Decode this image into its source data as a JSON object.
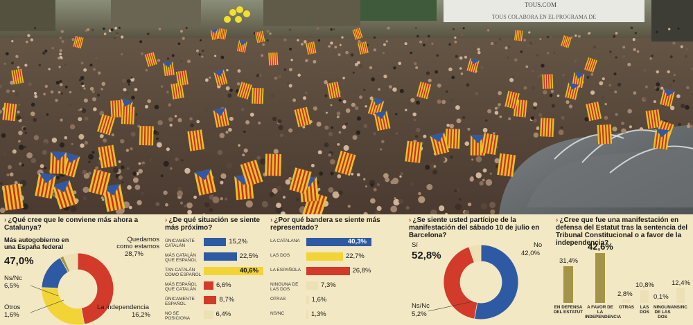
{
  "colors": {
    "red": "#d23b2a",
    "yellow": "#f2d437",
    "blue": "#2e5aa3",
    "olive": "#a39447",
    "olive_light": "#c8bb7b",
    "pale": "#ece0b4",
    "cream": "#f3e8c4"
  },
  "photo": {
    "banner_line1": "TOUS.COM",
    "banner_line2": "TOUS COLABORA EN EL PROGRAMA DE"
  },
  "chart_data": [
    {
      "type": "pie",
      "title": "¿Qué cree que le conviene más ahora a Catalunya?",
      "slices": [
        {
          "label": "Más autogobierno en una España federal",
          "value": 47.0,
          "display": "47,0%",
          "color": "red"
        },
        {
          "label": "Quedamos como estamos",
          "value": 28.7,
          "display": "28,7%",
          "color": "yellow"
        },
        {
          "label": "La independencia",
          "value": 16.2,
          "display": "16,2%",
          "color": "blue"
        },
        {
          "label": "Otros",
          "value": 1.6,
          "display": "1,6%",
          "color": "olive"
        },
        {
          "label": "Ns/Nc",
          "value": 6.5,
          "display": "6,5%",
          "color": "pale"
        }
      ]
    },
    {
      "type": "bar",
      "orientation": "horizontal",
      "title": "¿De qué situación se siente más próximo?",
      "categories": [
        "ÚNICAMENTE CATALÁN",
        "MÁS CATALÁN QUE ESPAÑOL",
        "TAN CATALÁN COMO ESPAÑOL",
        "MÁS ESPAÑOL QUE CATALÁN",
        "ÚNICAMENTE ESPAÑOL",
        "NO SE POSICIONA"
      ],
      "values": [
        15.2,
        22.5,
        40.6,
        6.6,
        8.7,
        6.4
      ],
      "display": [
        "15,2%",
        "22,5%",
        "40,6%",
        "6,6%",
        "8,7%",
        "6,4%"
      ],
      "colors": [
        "blue",
        "blue",
        "yellow",
        "red",
        "red",
        "pale"
      ],
      "highlight": [
        false,
        false,
        true,
        false,
        false,
        false
      ]
    },
    {
      "type": "bar",
      "orientation": "horizontal",
      "title": "¿Por qué bandera se siente más representado?",
      "categories": [
        "LA CATALANA",
        "LAS DOS",
        "LA ESPAÑOLA",
        "NINGUNA DE LAS DOS",
        "OTRAS",
        "NS/NC"
      ],
      "values": [
        40.3,
        22.7,
        26.8,
        7.3,
        1.6,
        1.3
      ],
      "display": [
        "40,3%",
        "22,7%",
        "26,8%",
        "7,3%",
        "1,6%",
        "1,3%"
      ],
      "colors": [
        "blue",
        "yellow",
        "red",
        "pale",
        "pale",
        "pale"
      ],
      "highlight": [
        true,
        false,
        false,
        false,
        false,
        false
      ]
    },
    {
      "type": "pie",
      "title": "¿Se siente usted partícipe de la manifestación del sábado 10 de julio en Barcelona?",
      "slices": [
        {
          "label": "Sí",
          "value": 52.8,
          "display": "52,8%",
          "color": "blue"
        },
        {
          "label": "No",
          "value": 42.0,
          "display": "42,0%",
          "color": "red"
        },
        {
          "label": "Ns/Nc",
          "value": 5.2,
          "display": "5,2%",
          "color": "pale"
        }
      ]
    },
    {
      "type": "bar",
      "orientation": "vertical",
      "title": "¿Cree que fue una manifestación en defensa del Estatut tras la sentencia del Tribunal Constitucional o a favor de la independencia?",
      "categories": [
        "EN DEFENSA DEL ESTATUT",
        "A FAVOR DE LA INDEPENDENCIA",
        "OTRAS",
        "LAS DOS",
        "NINGUNA DE LAS DOS",
        "NS/NC"
      ],
      "values": [
        31.4,
        42.6,
        2.8,
        10.8,
        0.1,
        12.4
      ],
      "display": [
        "31,4%",
        "42,6%",
        "2,8%",
        "10,8%",
        "0,1%",
        "12,4%"
      ],
      "colors": [
        "olive",
        "olive",
        "pale",
        "pale",
        "pale",
        "pale"
      ]
    }
  ]
}
